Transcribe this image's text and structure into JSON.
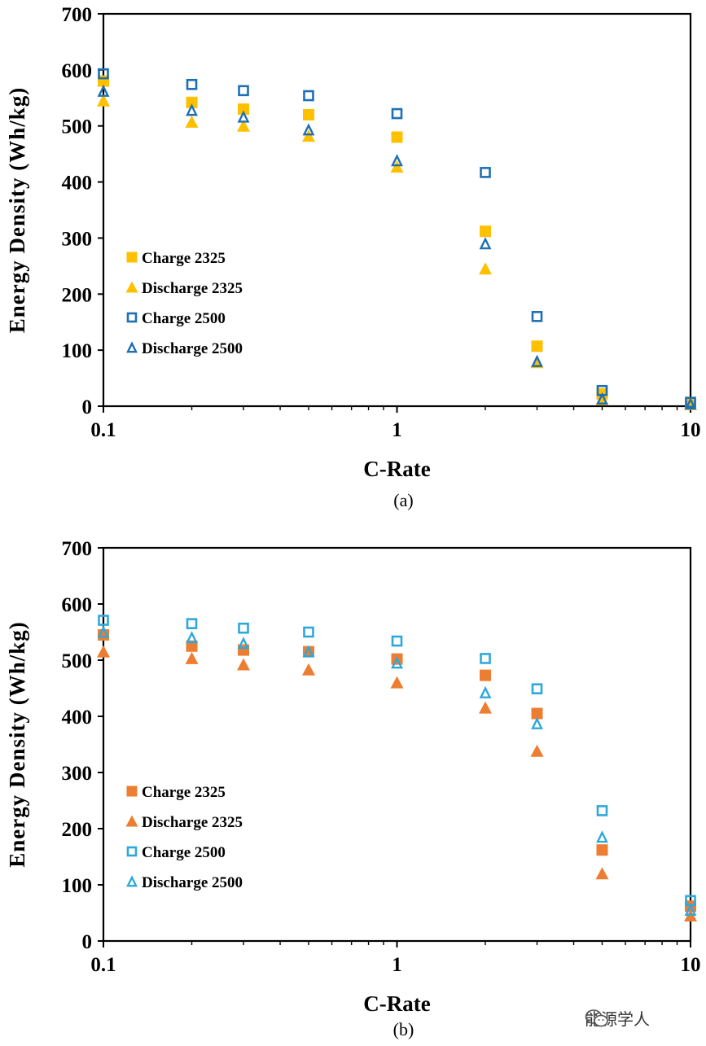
{
  "chart_data": [
    {
      "type": "scatter",
      "caption": "(a)",
      "xlabel": "C-Rate",
      "ylabel": "Energy Density (Wh/kg)",
      "xscale": "log",
      "xlim": [
        0.1,
        10
      ],
      "ylim": [
        0,
        700
      ],
      "xticks": [
        "0.1",
        "1",
        "10"
      ],
      "yticks": [
        "0",
        "100",
        "200",
        "300",
        "400",
        "500",
        "600",
        "700"
      ],
      "grid": false,
      "legend_position": "middle-left",
      "series": [
        {
          "name": "Charge 2325",
          "marker": "filled-square",
          "color": "#FFC000",
          "x": [
            0.1,
            0.2,
            0.3,
            0.5,
            1,
            2,
            3,
            5,
            10
          ],
          "y": [
            580,
            542,
            530,
            520,
            480,
            312,
            107,
            22,
            5
          ]
        },
        {
          "name": "Discharge 2325",
          "marker": "filled-triangle",
          "color": "#FFC000",
          "x": [
            0.1,
            0.2,
            0.3,
            0.5,
            1,
            2,
            3,
            5,
            10
          ],
          "y": [
            545,
            507,
            500,
            482,
            427,
            245,
            78,
            12,
            3
          ]
        },
        {
          "name": "Charge 2500",
          "marker": "open-square",
          "color": "#1F6FB4",
          "x": [
            0.1,
            0.2,
            0.3,
            0.5,
            1,
            2,
            3,
            5,
            10
          ],
          "y": [
            593,
            574,
            563,
            554,
            522,
            417,
            160,
            28,
            7
          ]
        },
        {
          "name": "Discharge 2500",
          "marker": "open-triangle",
          "color": "#1F6FB4",
          "x": [
            0.1,
            0.2,
            0.3,
            0.5,
            1,
            2,
            3,
            5,
            10
          ],
          "y": [
            562,
            528,
            516,
            493,
            438,
            290,
            80,
            13,
            4
          ]
        }
      ]
    },
    {
      "type": "scatter",
      "caption": "(b)",
      "xlabel": "C-Rate",
      "ylabel": "Energy Density (Wh/kg)",
      "xscale": "log",
      "xlim": [
        0.1,
        10
      ],
      "ylim": [
        0,
        700
      ],
      "xticks": [
        "0.1",
        "1",
        "10"
      ],
      "yticks": [
        "0",
        "100",
        "200",
        "300",
        "400",
        "500",
        "600",
        "700"
      ],
      "grid": false,
      "legend_position": "bottom-left",
      "series": [
        {
          "name": "Charge 2325",
          "marker": "filled-square",
          "color": "#ED7D31",
          "x": [
            0.1,
            0.2,
            0.3,
            0.5,
            1,
            2,
            3,
            5,
            10
          ],
          "y": [
            545,
            525,
            518,
            515,
            502,
            473,
            405,
            162,
            62
          ]
        },
        {
          "name": "Discharge 2325",
          "marker": "filled-triangle",
          "color": "#ED7D31",
          "x": [
            0.1,
            0.2,
            0.3,
            0.5,
            1,
            2,
            3,
            5,
            10
          ],
          "y": [
            515,
            503,
            492,
            483,
            460,
            415,
            338,
            120,
            45
          ]
        },
        {
          "name": "Charge 2500",
          "marker": "open-square",
          "color": "#2EA8DB",
          "x": [
            0.1,
            0.2,
            0.3,
            0.5,
            1,
            2,
            3,
            5,
            10
          ],
          "y": [
            571,
            565,
            557,
            550,
            534,
            503,
            449,
            232,
            72
          ]
        },
        {
          "name": "Discharge 2500",
          "marker": "open-triangle",
          "color": "#2EA8DB",
          "x": [
            0.1,
            0.2,
            0.3,
            0.5,
            1,
            2,
            3,
            5,
            10
          ],
          "y": [
            550,
            540,
            530,
            515,
            495,
            442,
            387,
            185,
            55
          ]
        }
      ]
    }
  ],
  "watermark": {
    "icon": "wechat-icon",
    "text": "能源学人"
  }
}
